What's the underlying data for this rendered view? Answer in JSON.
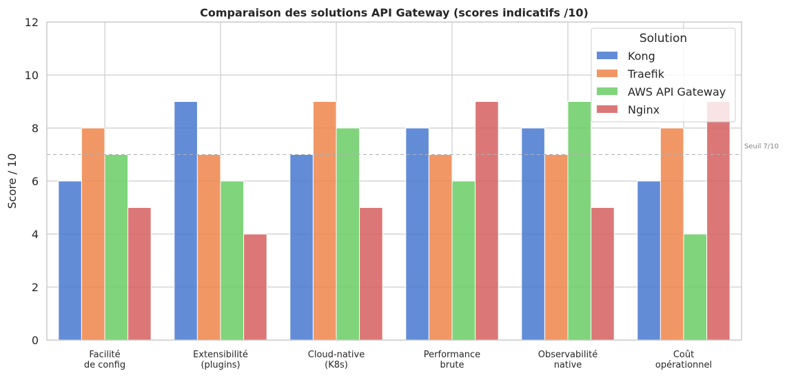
{
  "chart_data": {
    "type": "bar",
    "title": "Comparaison des solutions API Gateway (scores indicatifs /10)",
    "xlabel": "",
    "ylabel": "Score / 10",
    "ylim": [
      0,
      12
    ],
    "yticks": [
      0,
      2,
      4,
      6,
      8,
      10,
      12
    ],
    "grid": true,
    "categories": [
      [
        "Facilité",
        "de config"
      ],
      [
        "Extensibilité",
        "(plugins)"
      ],
      [
        "Cloud-native",
        "(K8s)"
      ],
      [
        "Performance",
        "brute"
      ],
      [
        "Observabilité",
        "native"
      ],
      [
        "Coût",
        "opérationnel"
      ]
    ],
    "series": [
      {
        "name": "Kong",
        "color": "#4878d0",
        "values": [
          6,
          9,
          7,
          8,
          8,
          6
        ]
      },
      {
        "name": "Traefik",
        "color": "#ee854a",
        "values": [
          8,
          7,
          9,
          7,
          7,
          8
        ]
      },
      {
        "name": "AWS API Gateway",
        "color": "#6acc64",
        "values": [
          7,
          6,
          8,
          6,
          9,
          4
        ]
      },
      {
        "name": "Nginx",
        "color": "#d65f5f",
        "values": [
          5,
          4,
          5,
          9,
          5,
          9
        ]
      }
    ],
    "threshold": {
      "value": 7,
      "label": "Seuil 7/10"
    },
    "legend": {
      "title": "Solution",
      "position": "top-right"
    }
  }
}
